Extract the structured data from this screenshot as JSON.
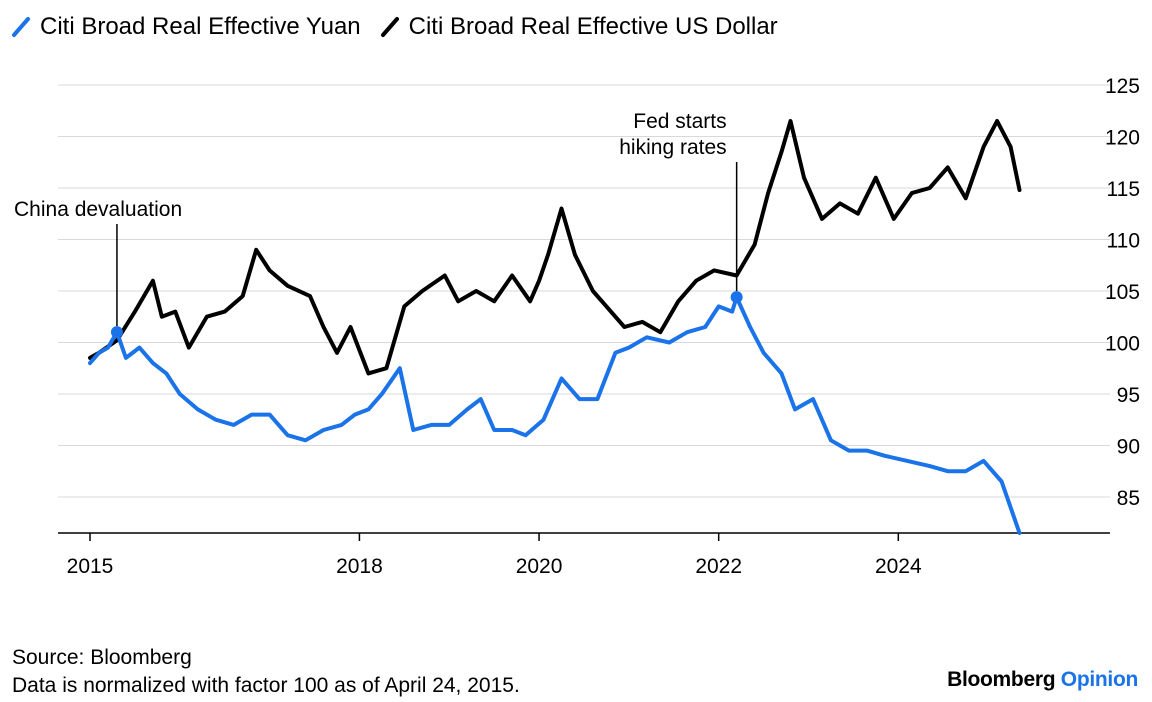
{
  "legend": {
    "items": [
      {
        "label": "Citi Broad Real Effective Yuan",
        "color": "#1a73e8",
        "icon": "slash-line-icon"
      },
      {
        "label": "Citi Broad Real Effective US Dollar",
        "color": "#000000",
        "icon": "slash-line-icon"
      }
    ]
  },
  "footer": {
    "source": "Source: Bloomberg",
    "note": "Data is normalized with factor 100 as of April 24, 2015."
  },
  "brand": {
    "name": "Bloomberg",
    "accent": "Opinion",
    "accent_color": "#1a73e8"
  },
  "chart_data": {
    "type": "line",
    "x_ticks": [
      "2015",
      "2018",
      "2020",
      "2022",
      "2024"
    ],
    "y_ticks": [
      85,
      90,
      95,
      100,
      105,
      110,
      115,
      120,
      125
    ],
    "ylim": [
      81.5,
      125
    ],
    "xlim": [
      2015.0,
      2025.6
    ],
    "y_axis_side": "right",
    "grid": true,
    "annotations": [
      {
        "text_lines": [
          "China devaluation"
        ],
        "x": 2015.3,
        "y": 101.0,
        "series": "Citi Broad Real Effective Yuan"
      },
      {
        "text_lines": [
          "Fed starts",
          "hiking rates"
        ],
        "x": 2022.2,
        "y": 104.4,
        "series": "Citi Broad Real Effective Yuan"
      }
    ],
    "series": [
      {
        "name": "Citi Broad Real Effective US Dollar",
        "color": "#000000",
        "points": [
          [
            2015.0,
            98.5
          ],
          [
            2015.1,
            99.0
          ],
          [
            2015.3,
            100.2
          ],
          [
            2015.5,
            103.0
          ],
          [
            2015.7,
            106.0
          ],
          [
            2015.8,
            102.5
          ],
          [
            2015.95,
            103.0
          ],
          [
            2016.1,
            99.5
          ],
          [
            2016.3,
            102.5
          ],
          [
            2016.5,
            103.0
          ],
          [
            2016.7,
            104.5
          ],
          [
            2016.85,
            109.0
          ],
          [
            2017.0,
            107.0
          ],
          [
            2017.2,
            105.5
          ],
          [
            2017.45,
            104.5
          ],
          [
            2017.6,
            101.5
          ],
          [
            2017.75,
            99.0
          ],
          [
            2017.9,
            101.5
          ],
          [
            2018.1,
            97.0
          ],
          [
            2018.3,
            97.5
          ],
          [
            2018.5,
            103.5
          ],
          [
            2018.7,
            105.0
          ],
          [
            2018.95,
            106.5
          ],
          [
            2019.1,
            104.0
          ],
          [
            2019.3,
            105.0
          ],
          [
            2019.5,
            104.0
          ],
          [
            2019.7,
            106.5
          ],
          [
            2019.9,
            104.0
          ],
          [
            2020.0,
            106.0
          ],
          [
            2020.1,
            108.5
          ],
          [
            2020.25,
            113.0
          ],
          [
            2020.4,
            108.5
          ],
          [
            2020.6,
            105.0
          ],
          [
            2020.8,
            103.0
          ],
          [
            2020.95,
            101.5
          ],
          [
            2021.15,
            102.0
          ],
          [
            2021.35,
            101.0
          ],
          [
            2021.55,
            104.0
          ],
          [
            2021.75,
            106.0
          ],
          [
            2021.95,
            107.0
          ],
          [
            2022.2,
            106.5
          ],
          [
            2022.4,
            109.5
          ],
          [
            2022.55,
            114.5
          ],
          [
            2022.7,
            118.5
          ],
          [
            2022.8,
            121.5
          ],
          [
            2022.95,
            116.0
          ],
          [
            2023.15,
            112.0
          ],
          [
            2023.35,
            113.5
          ],
          [
            2023.55,
            112.5
          ],
          [
            2023.75,
            116.0
          ],
          [
            2023.95,
            112.0
          ],
          [
            2024.15,
            114.5
          ],
          [
            2024.35,
            115.0
          ],
          [
            2024.55,
            117.0
          ],
          [
            2024.75,
            114.0
          ],
          [
            2024.95,
            119.0
          ],
          [
            2025.1,
            121.5
          ],
          [
            2025.25,
            119.0
          ],
          [
            2025.35,
            114.8
          ]
        ]
      },
      {
        "name": "Citi Broad Real Effective Yuan",
        "color": "#1a73e8",
        "points": [
          [
            2015.0,
            98.0
          ],
          [
            2015.1,
            99.0
          ],
          [
            2015.2,
            99.5
          ],
          [
            2015.3,
            101.0
          ],
          [
            2015.4,
            98.5
          ],
          [
            2015.55,
            99.5
          ],
          [
            2015.7,
            98.0
          ],
          [
            2015.85,
            97.0
          ],
          [
            2016.0,
            95.0
          ],
          [
            2016.2,
            93.5
          ],
          [
            2016.4,
            92.5
          ],
          [
            2016.6,
            92.0
          ],
          [
            2016.8,
            93.0
          ],
          [
            2017.0,
            93.0
          ],
          [
            2017.2,
            91.0
          ],
          [
            2017.4,
            90.5
          ],
          [
            2017.6,
            91.5
          ],
          [
            2017.8,
            92.0
          ],
          [
            2017.95,
            93.0
          ],
          [
            2018.1,
            93.5
          ],
          [
            2018.25,
            95.0
          ],
          [
            2018.45,
            97.5
          ],
          [
            2018.6,
            91.5
          ],
          [
            2018.8,
            92.0
          ],
          [
            2019.0,
            92.0
          ],
          [
            2019.2,
            93.5
          ],
          [
            2019.35,
            94.5
          ],
          [
            2019.5,
            91.5
          ],
          [
            2019.7,
            91.5
          ],
          [
            2019.85,
            91.0
          ],
          [
            2020.05,
            92.5
          ],
          [
            2020.25,
            96.5
          ],
          [
            2020.45,
            94.5
          ],
          [
            2020.65,
            94.5
          ],
          [
            2020.85,
            99.0
          ],
          [
            2021.0,
            99.5
          ],
          [
            2021.2,
            100.5
          ],
          [
            2021.45,
            100.0
          ],
          [
            2021.65,
            101.0
          ],
          [
            2021.85,
            101.5
          ],
          [
            2022.0,
            103.5
          ],
          [
            2022.15,
            103.0
          ],
          [
            2022.2,
            104.4
          ],
          [
            2022.35,
            101.5
          ],
          [
            2022.5,
            99.0
          ],
          [
            2022.7,
            97.0
          ],
          [
            2022.85,
            93.5
          ],
          [
            2023.05,
            94.5
          ],
          [
            2023.25,
            90.5
          ],
          [
            2023.45,
            89.5
          ],
          [
            2023.65,
            89.5
          ],
          [
            2023.85,
            89.0
          ],
          [
            2024.1,
            88.5
          ],
          [
            2024.35,
            88.0
          ],
          [
            2024.55,
            87.5
          ],
          [
            2024.75,
            87.5
          ],
          [
            2024.95,
            88.5
          ],
          [
            2025.15,
            86.5
          ],
          [
            2025.35,
            81.5
          ]
        ]
      }
    ]
  }
}
